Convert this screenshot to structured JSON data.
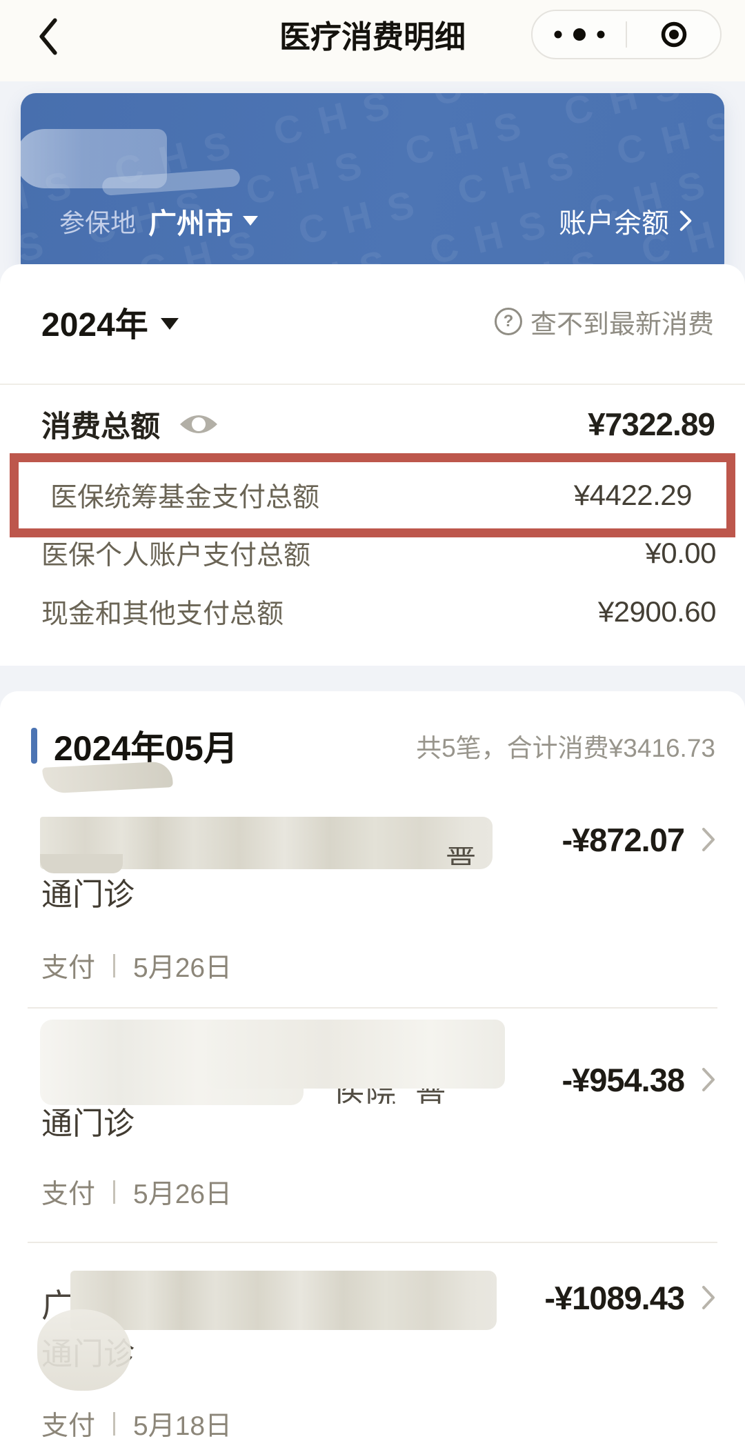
{
  "nav": {
    "title": "医疗消费明细"
  },
  "banner": {
    "region_label": "参保地",
    "region_value": "广州市",
    "balance_label": "账户余额",
    "watermark": "CHS"
  },
  "filter": {
    "year": "2024年",
    "help_text": "查不到最新消费"
  },
  "icons": {
    "question": "?"
  },
  "summary": {
    "total_label": "消费总额",
    "total_amount": "¥7322.89",
    "rows": [
      {
        "label": "医保统筹基金支付总额",
        "amount": "¥4422.29",
        "highlighted": true
      },
      {
        "label": "医保个人账户支付总额",
        "amount": "¥0.00",
        "highlighted": false
      },
      {
        "label": "现金和其他支付总额",
        "amount": "¥2900.60",
        "highlighted": false
      }
    ]
  },
  "month": {
    "title": "2024年05月",
    "summary": "共5笔，合计消费¥3416.73",
    "items": [
      {
        "fragment": "普",
        "category": "通门诊",
        "amount": "-¥872.07",
        "status": "支付",
        "date": "5月26日"
      },
      {
        "fragment": "医院 普",
        "category": "通门诊",
        "amount": "-¥954.38",
        "status": "支付",
        "date": "5月26日"
      },
      {
        "name_prefix": "广",
        "fragment": "",
        "category": "通门诊",
        "amount": "-¥1089.43",
        "status": "支付",
        "date": "5月18日"
      }
    ]
  },
  "colors": {
    "accent_blue": "#4C74B3",
    "highlight_red": "#BD574C"
  }
}
